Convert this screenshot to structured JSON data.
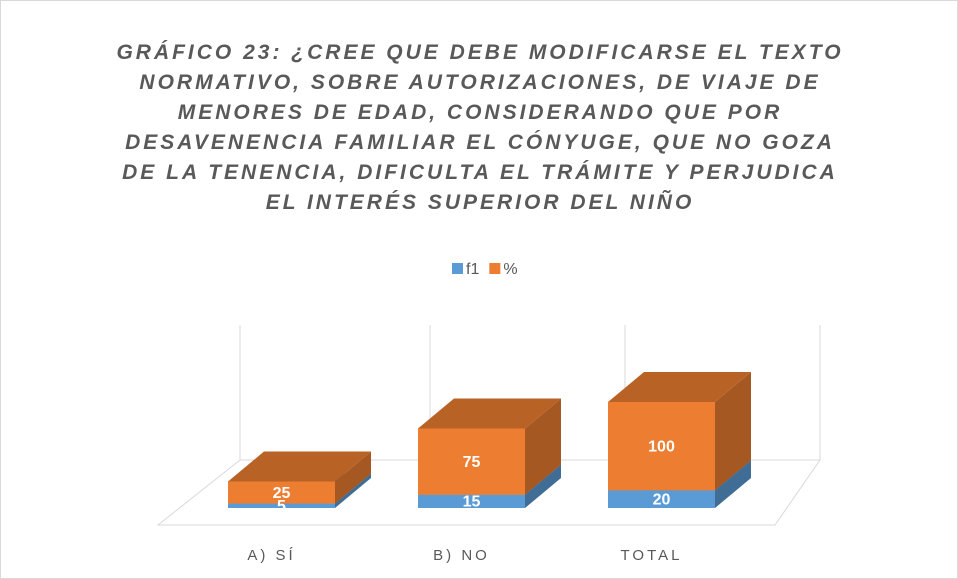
{
  "chart_data": {
    "type": "bar3d_stacked",
    "title": "GRÁFICO 23: ¿CREE QUE DEBE MODIFICARSE EL TEXTO NORMATIVO, SOBRE AUTORIZACIONES, DE VIAJE DE MENORES DE EDAD, CONSIDERANDO QUE POR DESAVENENCIA FAMILIAR EL CÓNYUGE, QUE NO GOZA DE LA TENENCIA, DIFICULTA EL TRÁMITE Y PERJUDICA EL INTERÉS SUPERIOR DEL NIÑO",
    "categories": [
      "A) SÍ",
      "B) NO",
      "TOTAL"
    ],
    "series": [
      {
        "name": "f1",
        "color": "#5b9bd5",
        "values": [
          5,
          15,
          20
        ]
      },
      {
        "name": "%",
        "color": "#ed7d31",
        "values": [
          25,
          75,
          100
        ]
      }
    ],
    "legend": "top"
  }
}
